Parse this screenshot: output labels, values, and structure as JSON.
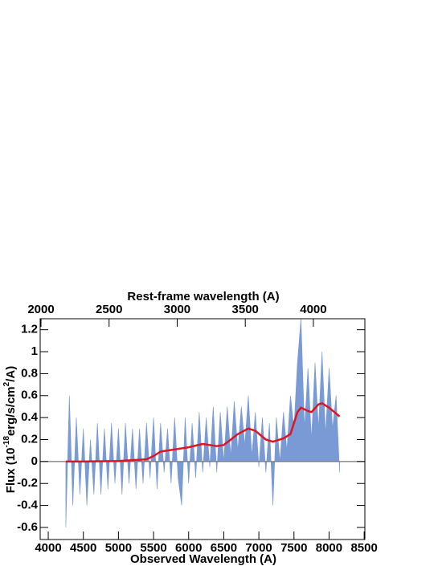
{
  "chart_data": {
    "type": "line",
    "xlabel": "Observed Wavelength (A)",
    "x2label": "Rest-frame wavelength (A)",
    "ylabel": [
      "Flux (10",
      "-18",
      "erg/s/cm",
      "2",
      "/A)"
    ],
    "xlim": [
      3885,
      8510
    ],
    "xticks": [
      4000,
      4500,
      5000,
      5500,
      6000,
      6500,
      7000,
      7500,
      8000,
      8500
    ],
    "x2lim": [
      1994,
      4378
    ],
    "x2ticks": [
      2000,
      2500,
      3000,
      3500,
      4000
    ],
    "ylim": [
      -0.71,
      1.3
    ],
    "yticks": [
      -0.6,
      -0.4,
      -0.2,
      0,
      0.2,
      0.4,
      0.6,
      0.8,
      1,
      1.2
    ],
    "hline": 0,
    "series": [
      {
        "color": "#7a9ad6",
        "fill": true,
        "x": [
          4250,
          4300,
          4350,
          4400,
          4450,
          4500,
          4550,
          4600,
          4650,
          4700,
          4750,
          4800,
          4850,
          4900,
          4950,
          5000,
          5050,
          5100,
          5150,
          5200,
          5250,
          5300,
          5350,
          5400,
          5450,
          5500,
          5550,
          5600,
          5650,
          5700,
          5750,
          5800,
          5850,
          5900,
          5950,
          6000,
          6050,
          6100,
          6150,
          6200,
          6250,
          6300,
          6350,
          6400,
          6450,
          6500,
          6550,
          6600,
          6650,
          6700,
          6750,
          6800,
          6850,
          6900,
          6950,
          7000,
          7050,
          7100,
          7150,
          7200,
          7250,
          7300,
          7350,
          7400,
          7450,
          7500,
          7550,
          7600,
          7650,
          7700,
          7750,
          7800,
          7850,
          7900,
          7950,
          8000,
          8050,
          8100,
          8150
        ],
        "values": [
          -0.6,
          0.6,
          -0.4,
          0.4,
          -0.3,
          0.3,
          -0.4,
          0.2,
          -0.3,
          0.35,
          -0.3,
          0.3,
          -0.25,
          0.35,
          -0.2,
          0.3,
          -0.3,
          0.35,
          -0.2,
          0.3,
          -0.25,
          0.3,
          -0.2,
          0.35,
          -0.15,
          0.4,
          -0.25,
          0.35,
          -0.1,
          0.3,
          -0.2,
          0.4,
          -0.15,
          -0.4,
          0.4,
          -0.2,
          0.35,
          -0.15,
          0.45,
          -0.1,
          0.4,
          -0.05,
          0.5,
          -0.1,
          0.45,
          0.0,
          0.5,
          0.05,
          0.55,
          0.1,
          0.5,
          0.15,
          0.6,
          0.05,
          0.45,
          -0.05,
          0.4,
          -0.1,
          0.35,
          -0.4,
          0.4,
          0.0,
          0.45,
          0.1,
          0.6,
          0.3,
          0.9,
          1.3,
          0.3,
          0.85,
          0.2,
          0.9,
          0.3,
          1.0,
          0.25,
          0.85,
          0.3,
          0.6,
          -0.1
        ]
      },
      {
        "color": "#e0141e",
        "fill": false,
        "x": [
          4250,
          4500,
          5000,
          5400,
          5500,
          5600,
          5800,
          6000,
          6200,
          6400,
          6500,
          6600,
          6700,
          6850,
          6950,
          7100,
          7200,
          7350,
          7450,
          7550,
          7600,
          7700,
          7750,
          7850,
          7900,
          8000,
          8150
        ],
        "values": [
          0,
          0,
          0.005,
          0.02,
          0.05,
          0.09,
          0.11,
          0.13,
          0.16,
          0.14,
          0.15,
          0.2,
          0.25,
          0.3,
          0.28,
          0.2,
          0.18,
          0.21,
          0.25,
          0.45,
          0.49,
          0.46,
          0.45,
          0.52,
          0.53,
          0.49,
          0.41
        ]
      }
    ]
  }
}
